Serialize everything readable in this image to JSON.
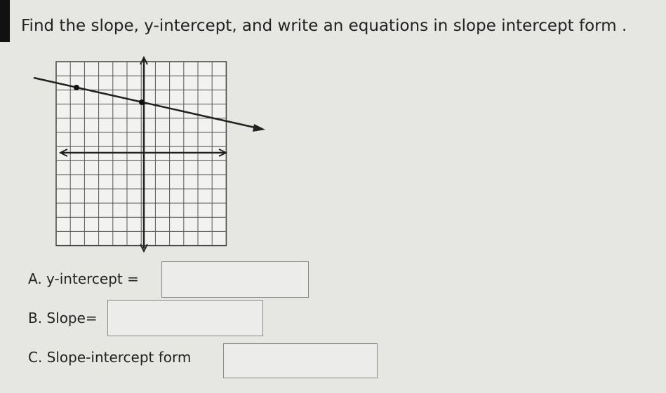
{
  "question": "Find the slope, y-intercept, and write an equations in slope intercept form .",
  "parts": [
    {
      "label": "A. y-intercept ="
    },
    {
      "label": "B. Slope="
    },
    {
      "label": "C. Slope-intercept form"
    }
  ]
}
